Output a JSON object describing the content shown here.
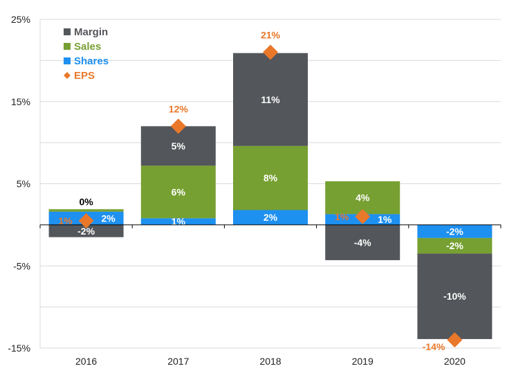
{
  "chart_data": {
    "type": "bar",
    "stacked": true,
    "categories": [
      "2016",
      "2017",
      "2018",
      "2019",
      "2020"
    ],
    "ylim": [
      -15,
      25
    ],
    "yticks": [
      25,
      15,
      5,
      -5,
      -15
    ],
    "ytick_labels": [
      "25%",
      "15%",
      "5%",
      "-5%",
      "-15%"
    ],
    "grid": true,
    "legend_position": "top-left",
    "series": [
      {
        "name": "Shares",
        "color": "#1E90F0",
        "values": [
          1.6,
          0.8,
          1.8,
          1.3,
          -1.6
        ],
        "labels": [
          "2%",
          "1%",
          "2%",
          "1%",
          "-2%"
        ]
      },
      {
        "name": "Sales",
        "color": "#77A032",
        "values": [
          0.3,
          6.4,
          7.8,
          4.0,
          -1.9
        ],
        "labels": [
          "0%",
          "6%",
          "8%",
          "4%",
          "-2%"
        ]
      },
      {
        "name": "Margin",
        "color": "#53565A",
        "values": [
          -1.5,
          4.8,
          11.3,
          -4.3,
          -10.4
        ],
        "labels": [
          "-2%",
          "5%",
          "11%",
          "-4%",
          "-10%"
        ]
      }
    ],
    "eps": {
      "name": "EPS",
      "color": "#E9782B",
      "values": [
        0.5,
        12,
        21,
        1,
        -14
      ],
      "labels": [
        "1%",
        "12%",
        "21%",
        "1%",
        "-14%"
      ]
    },
    "legend": [
      "Margin",
      "Sales",
      "Shares",
      "EPS"
    ]
  }
}
